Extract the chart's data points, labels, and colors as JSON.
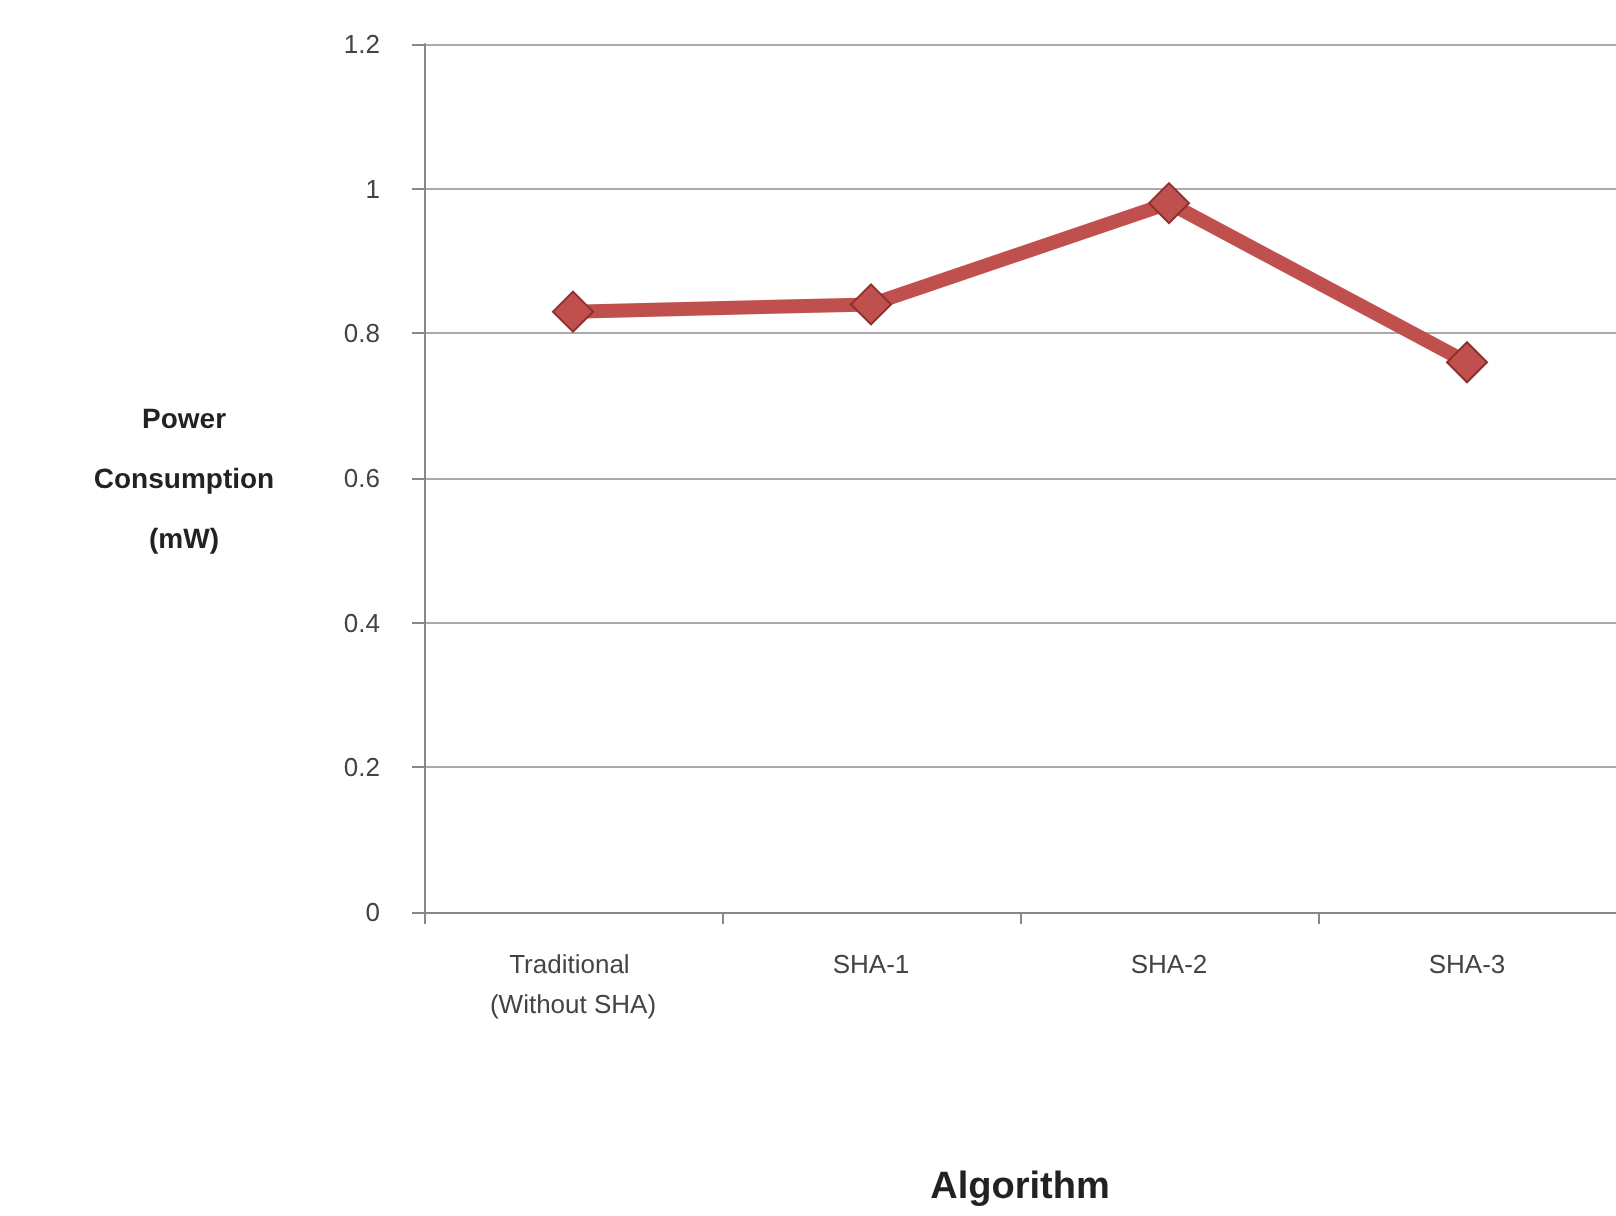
{
  "chart_data": {
    "type": "line",
    "xlabel": "Algorithm",
    "ylabel": "Power Consumption (mW)",
    "categories": [
      "Traditional (Without SHA)",
      "SHA-1",
      "SHA-2",
      "SHA-3"
    ],
    "series": [
      {
        "color": "#c0504d",
        "values": [
          0.83,
          0.84,
          0.98,
          0.76
        ]
      }
    ],
    "ylim": [
      0,
      1.2
    ],
    "yticks": [
      0,
      0.2,
      0.4,
      0.6,
      0.8,
      1,
      1.2
    ],
    "grid": "y",
    "marker": "diamond",
    "line_style": "solid"
  }
}
